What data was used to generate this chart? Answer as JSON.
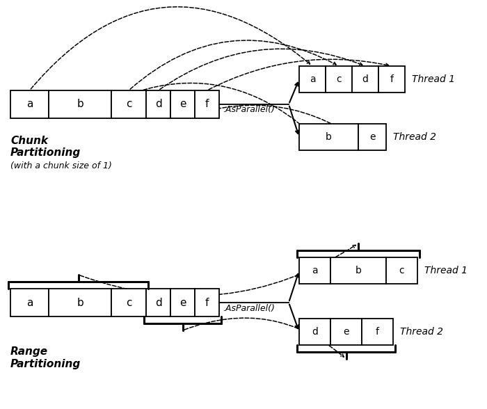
{
  "bg_color": "#ffffff",
  "chunk_source_letters": [
    "a",
    "b",
    "c",
    "d",
    "e",
    "f"
  ],
  "chunk_thread1_letters": [
    "a",
    "c",
    "d",
    "f"
  ],
  "chunk_thread2_letters": [
    "b",
    "e"
  ],
  "range_source_letters": [
    "a",
    "b",
    "c",
    "d",
    "e",
    "f"
  ],
  "range_thread1_letters": [
    "a",
    "b",
    "c"
  ],
  "range_thread2_letters": [
    "d",
    "e",
    "f"
  ],
  "chunk_label1": "Chunk",
  "chunk_label2": "Partitioning",
  "chunk_label3": "(with a chunk size of 1)",
  "range_label1": "Range",
  "range_label2": "Partitioning",
  "asparallel_text": ".AsParallel()",
  "thread1_text": "Thread 1",
  "thread2_text": "Thread 2"
}
